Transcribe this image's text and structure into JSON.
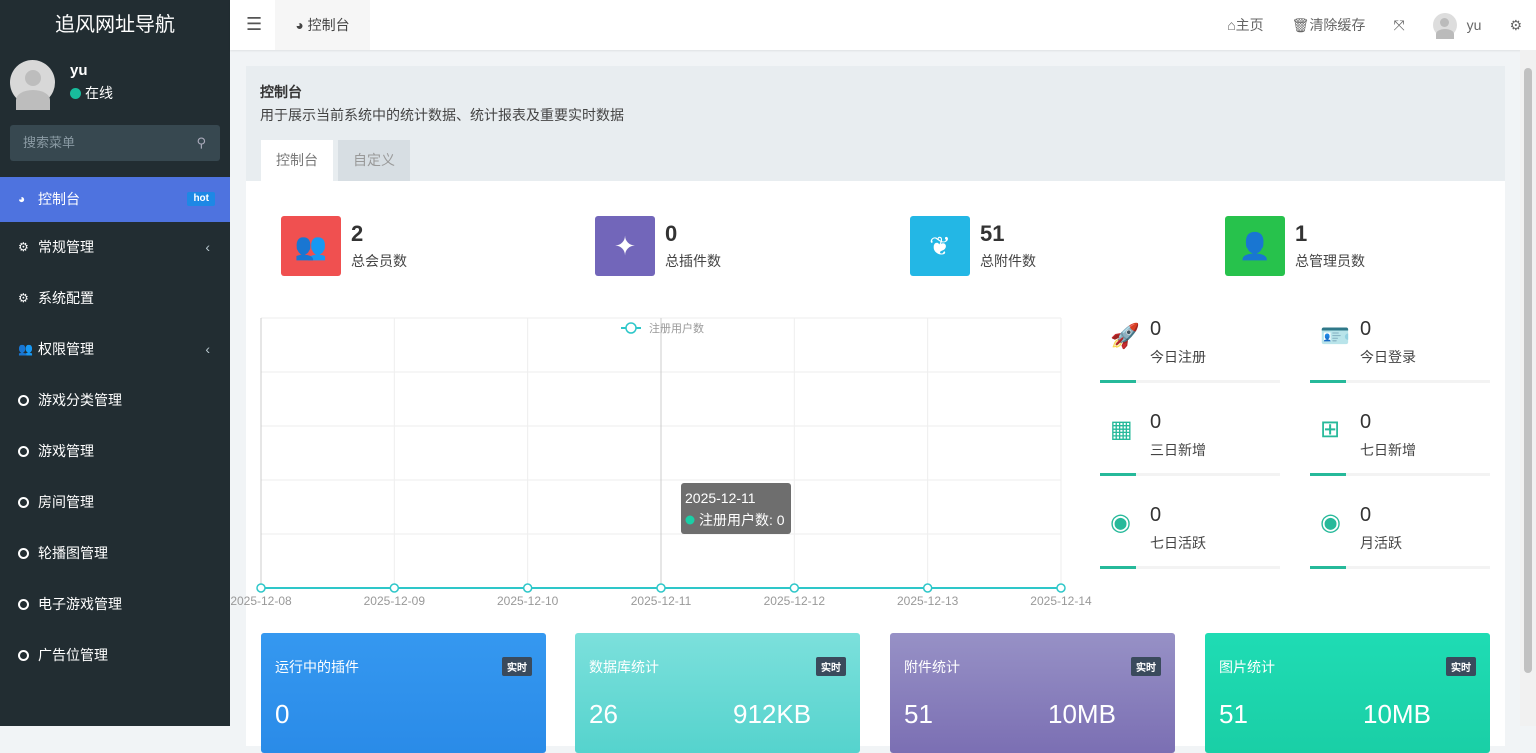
{
  "sidebar": {
    "logo": "追风网址导航",
    "user": {
      "name": "yu",
      "status": "在线"
    },
    "search_placeholder": "搜索菜单",
    "items": [
      {
        "label": "控制台",
        "badge": "hot",
        "active": true
      },
      {
        "label": "常规管理",
        "has_children": true
      },
      {
        "label": "系统配置"
      },
      {
        "label": "权限管理",
        "has_children": true
      },
      {
        "label": "游戏分类管理"
      },
      {
        "label": "游戏管理"
      },
      {
        "label": "房间管理"
      },
      {
        "label": "轮播图管理"
      },
      {
        "label": "电子游戏管理"
      },
      {
        "label": "广告位管理"
      }
    ]
  },
  "topbar": {
    "tab": "控制台",
    "home": "主页",
    "clear_cache": "清除缓存",
    "username": "yu"
  },
  "panel": {
    "title": "控制台",
    "description": "用于展示当前系统中的统计数据、统计报表及重要实时数据",
    "tabs": [
      "控制台",
      "自定义"
    ]
  },
  "stats": [
    {
      "value": "2",
      "label": "总会员数",
      "color": "#f05050"
    },
    {
      "value": "0",
      "label": "总插件数",
      "color": "#7266ba"
    },
    {
      "value": "51",
      "label": "总附件数",
      "color": "#23b7e5"
    },
    {
      "value": "1",
      "label": "总管理员数",
      "color": "#27c24c"
    }
  ],
  "chart_data": {
    "type": "line",
    "legend": "注册用户数",
    "legend_position": "top-center",
    "categories": [
      "2025-12-08",
      "2025-12-09",
      "2025-12-10",
      "2025-12-11",
      "2025-12-12",
      "2025-12-13",
      "2025-12-14"
    ],
    "series": [
      {
        "name": "注册用户数",
        "values": [
          0,
          0,
          0,
          0,
          0,
          0,
          0
        ]
      }
    ],
    "color": "#2ec7c9",
    "grid": true,
    "tooltip": {
      "title": "2025-12-11",
      "text": "注册用户数: 0"
    }
  },
  "right_stats": [
    {
      "value": "0",
      "label": "今日注册",
      "icon": "rocket-icon"
    },
    {
      "value": "0",
      "label": "今日登录",
      "icon": "id-card-icon"
    },
    {
      "value": "0",
      "label": "三日新增",
      "icon": "calendar-icon"
    },
    {
      "value": "0",
      "label": "七日新增",
      "icon": "calendar-plus-icon"
    },
    {
      "value": "0",
      "label": "七日活跃",
      "icon": "user-circle-icon"
    },
    {
      "value": "0",
      "label": "月活跃",
      "icon": "user-circle-icon"
    }
  ],
  "bottom_cards": [
    {
      "title": "运行中的插件",
      "badge": "实时",
      "value": "0",
      "value2": ""
    },
    {
      "title": "数据库统计",
      "badge": "实时",
      "value": "26",
      "value2": "912KB"
    },
    {
      "title": "附件统计",
      "badge": "实时",
      "value": "51",
      "value2": "10MB"
    },
    {
      "title": "图片统计",
      "badge": "实时",
      "value": "51",
      "value2": "10MB"
    }
  ]
}
